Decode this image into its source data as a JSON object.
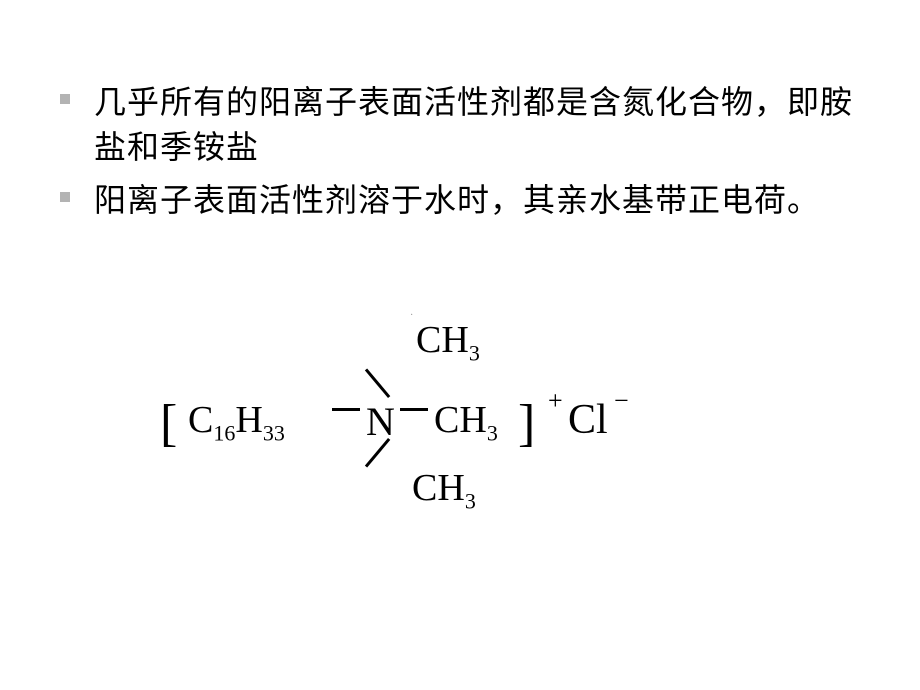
{
  "bullets": [
    {
      "text": "几乎所有的阳离子表面活性剂都是含氮化合物，即胺盐和季铵盐"
    },
    {
      "text": "阳离子表面活性剂溶于水时，其亲水基带正电荷。"
    }
  ],
  "chemical": {
    "bracket_left": "[",
    "alkyl_c": "C",
    "alkyl_sub1": "16",
    "alkyl_h": "H",
    "alkyl_sub2": "33",
    "nitrogen": "N",
    "ch3_c": "C",
    "ch3_h": "H",
    "ch3_sub": "3",
    "bracket_right": "]",
    "charge_plus": "+",
    "anion": "Cl",
    "charge_minus": "−",
    "top_c": "C",
    "top_h": "H",
    "top_sub": "3",
    "bottom_c": "C",
    "bottom_h": "H",
    "bottom_sub": "3"
  },
  "style": {
    "background_color": "#ffffff",
    "text_color": "#000000",
    "bullet_color": "#b3b3b3",
    "main_fontsize": 32,
    "chem_fontsize": 40
  }
}
